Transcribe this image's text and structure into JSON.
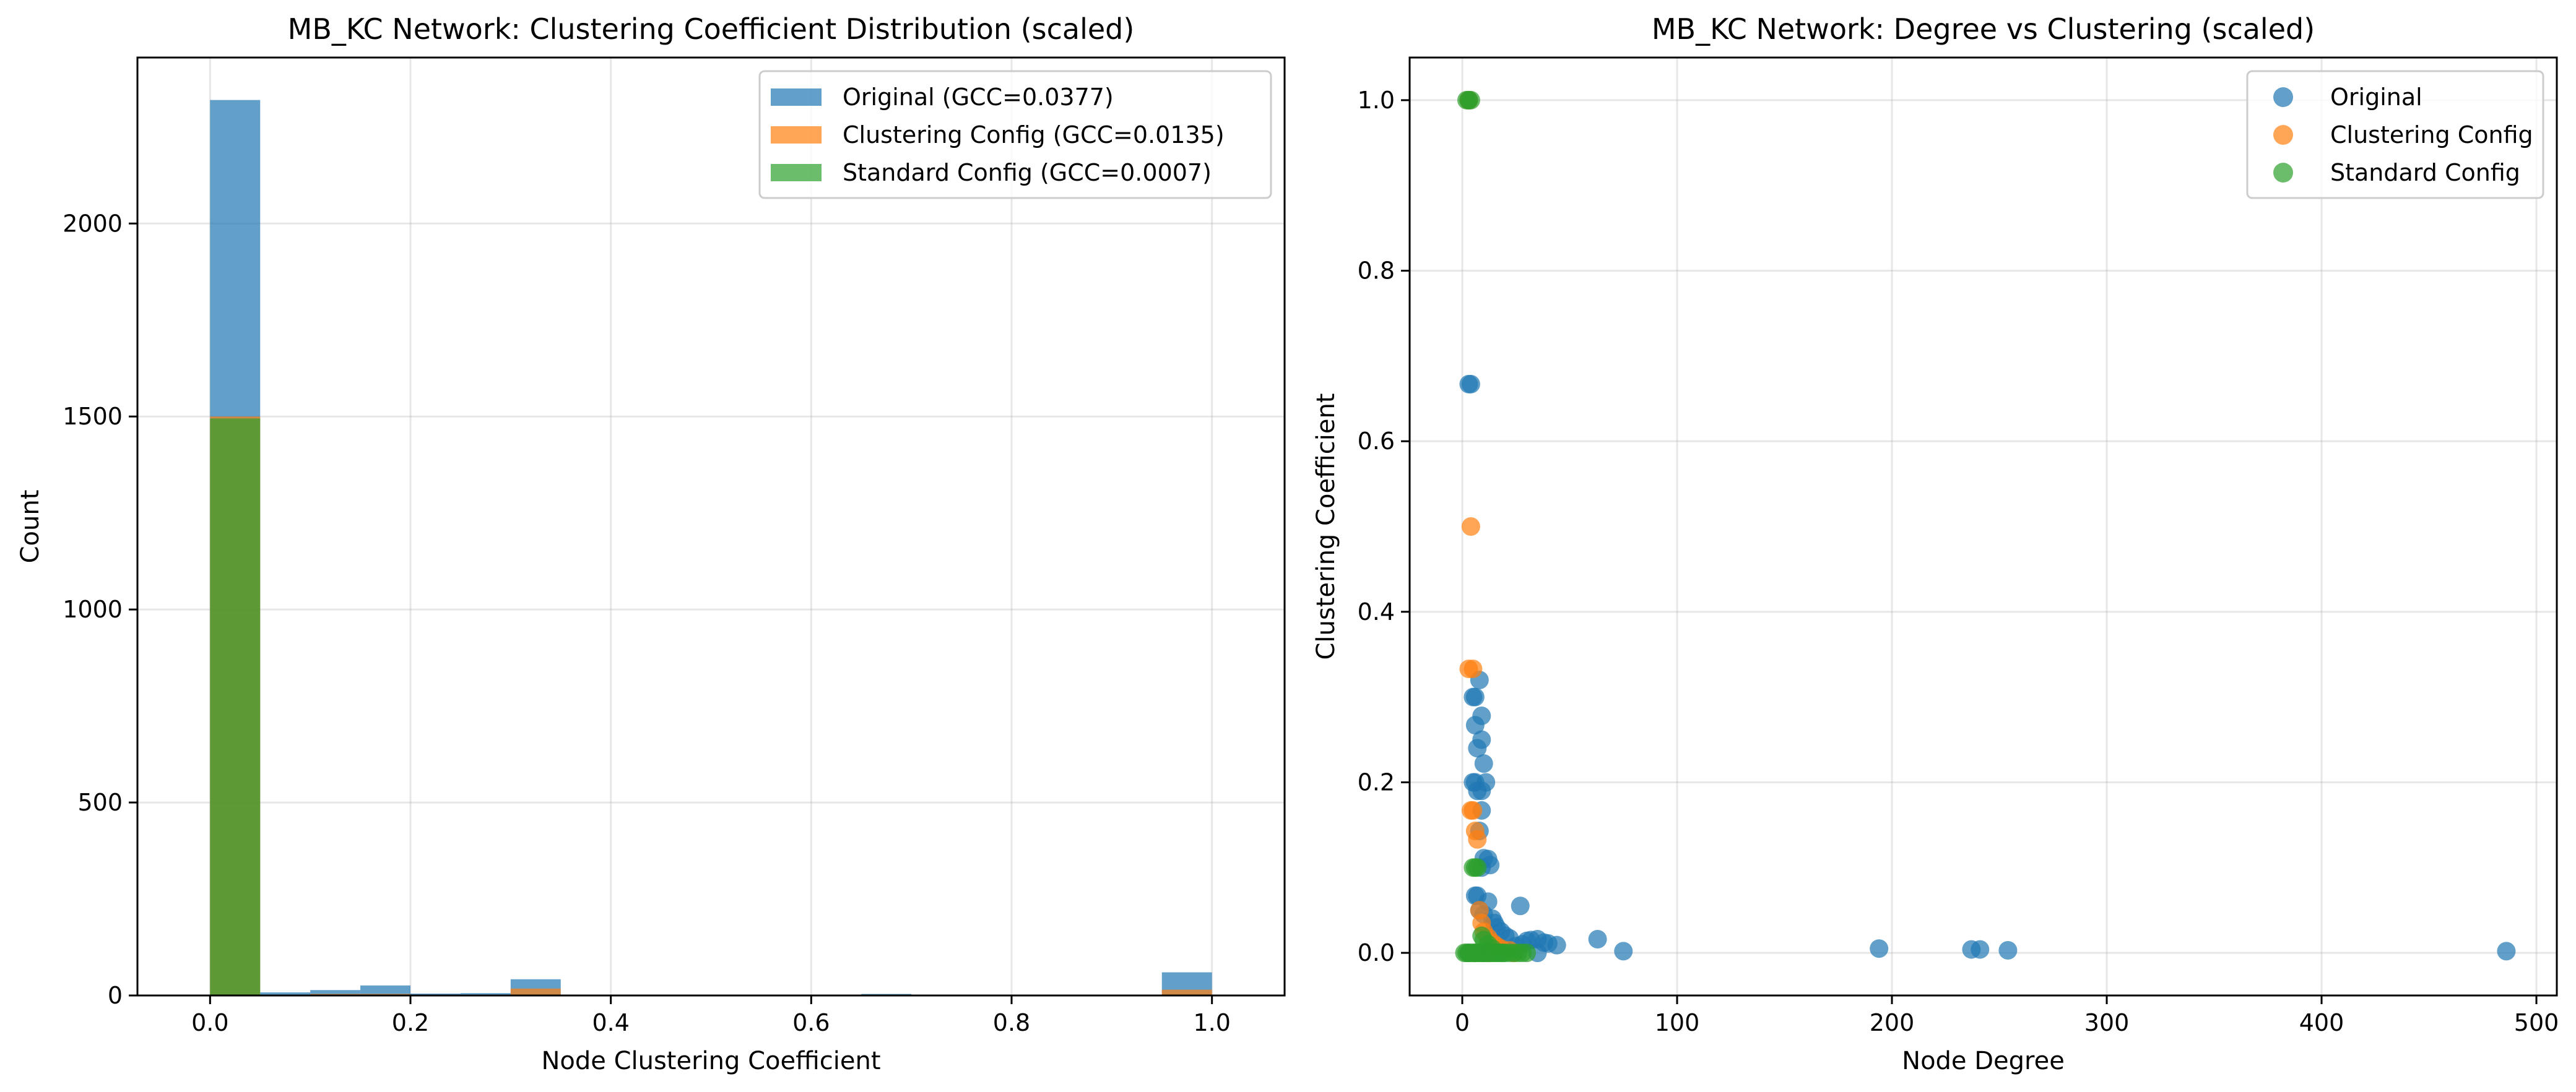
{
  "chart_data": [
    {
      "type": "bar",
      "title": "MB_KC Network: Clustering Coefficient Distribution (scaled)",
      "xlabel": "Node Clustering Coefficient",
      "ylabel": "Count",
      "xlim": [
        -0.0725,
        1.0725
      ],
      "ylim": [
        0,
        2430
      ],
      "xticks": [
        "0.0",
        "0.2",
        "0.4",
        "0.6",
        "0.8",
        "1.0"
      ],
      "yticks": [
        "0",
        "500",
        "1000",
        "1500",
        "2000"
      ],
      "grid": true,
      "legend_position": "upper right",
      "bin_width": 0.05,
      "bin_starts": [
        0.0,
        0.05,
        0.1,
        0.15,
        0.2,
        0.25,
        0.3,
        0.35,
        0.4,
        0.45,
        0.5,
        0.55,
        0.6,
        0.65,
        0.7,
        0.75,
        0.8,
        0.85,
        0.9,
        0.95
      ],
      "series": [
        {
          "name": "Original (GCC=0.0377)",
          "color": "#1f77b4",
          "values": [
            2320,
            8,
            14,
            26,
            5,
            6,
            42,
            0,
            0,
            0,
            2,
            0,
            0,
            4,
            0,
            0,
            0,
            0,
            0,
            60
          ]
        },
        {
          "name": "Clustering Config (GCC=0.0135)",
          "color": "#ff7f0e",
          "values": [
            1500,
            0,
            4,
            4,
            0,
            0,
            18,
            0,
            0,
            0,
            1,
            0,
            0,
            0,
            0,
            0,
            0,
            0,
            0,
            15
          ]
        },
        {
          "name": "Standard Config (GCC=0.0007)",
          "color": "#2ca02c",
          "values": [
            1495,
            0,
            0,
            0,
            0,
            0,
            0,
            0,
            0,
            0,
            0,
            0,
            0,
            0,
            0,
            0,
            0,
            0,
            0,
            2
          ]
        }
      ]
    },
    {
      "type": "scatter",
      "title": "MB_KC Network: Degree vs Clustering (scaled)",
      "xlabel": "Node Degree",
      "ylabel": "Clustering Coefficient",
      "xlim": [
        -24.5,
        509.5
      ],
      "ylim": [
        -0.05,
        1.05
      ],
      "xticks": [
        "0",
        "100",
        "200",
        "300",
        "400",
        "500"
      ],
      "yticks": [
        "0.0",
        "0.2",
        "0.4",
        "0.6",
        "0.8",
        "1.0"
      ],
      "grid": true,
      "legend_position": "upper right",
      "series": [
        {
          "name": "Original",
          "color": "#1f77b4",
          "points": [
            [
              3,
              1.0
            ],
            [
              3,
              0.667
            ],
            [
              4,
              0.667
            ],
            [
              5,
              0.3
            ],
            [
              6,
              0.3
            ],
            [
              8,
              0.32
            ],
            [
              6,
              0.267
            ],
            [
              9,
              0.278
            ],
            [
              7,
              0.24
            ],
            [
              9,
              0.25
            ],
            [
              10,
              0.222
            ],
            [
              5,
              0.2
            ],
            [
              6,
              0.2
            ],
            [
              11,
              0.2
            ],
            [
              7,
              0.19
            ],
            [
              9,
              0.19
            ],
            [
              9,
              0.167
            ],
            [
              8,
              0.143
            ],
            [
              10,
              0.111
            ],
            [
              12,
              0.11
            ],
            [
              13,
              0.103
            ],
            [
              9,
              0.1
            ],
            [
              6,
              0.067
            ],
            [
              7,
              0.067
            ],
            [
              12,
              0.06
            ],
            [
              27,
              0.055
            ],
            [
              8,
              0.05
            ],
            [
              10,
              0.045
            ],
            [
              14,
              0.04
            ],
            [
              15,
              0.035
            ],
            [
              16,
              0.03
            ],
            [
              18,
              0.025
            ],
            [
              20,
              0.02
            ],
            [
              22,
              0.017
            ],
            [
              30,
              0.014
            ],
            [
              32,
              0.015
            ],
            [
              35,
              0.016
            ],
            [
              38,
              0.012
            ],
            [
              40,
              0.011
            ],
            [
              44,
              0.009
            ],
            [
              28,
              0.01
            ],
            [
              25,
              0.008
            ],
            [
              63,
              0.016
            ],
            [
              75,
              0.002
            ],
            [
              194,
              0.005
            ],
            [
              237,
              0.004
            ],
            [
              241,
              0.004
            ],
            [
              254,
              0.003
            ],
            [
              486,
              0.002
            ],
            [
              35,
              0.0
            ],
            [
              3,
              0.0
            ],
            [
              6,
              0.0
            ],
            [
              10,
              0.0
            ]
          ]
        },
        {
          "name": "Clustering Config",
          "color": "#ff7f0e",
          "points": [
            [
              3,
              1.0
            ],
            [
              4,
              0.5
            ],
            [
              3,
              0.333
            ],
            [
              5,
              0.333
            ],
            [
              4,
              0.167
            ],
            [
              5,
              0.167
            ],
            [
              6,
              0.143
            ],
            [
              7,
              0.133
            ],
            [
              8,
              0.05
            ],
            [
              9,
              0.035
            ],
            [
              10,
              0.025
            ],
            [
              12,
              0.018
            ],
            [
              14,
              0.012
            ],
            [
              16,
              0.008
            ],
            [
              18,
              0.005
            ],
            [
              22,
              0.003
            ],
            [
              6,
              0.0
            ],
            [
              12,
              0.0
            ],
            [
              24,
              0.0
            ]
          ]
        },
        {
          "name": "Standard Config",
          "color": "#2ca02c",
          "points": [
            [
              2,
              1.0
            ],
            [
              3,
              1.0
            ],
            [
              4,
              1.0
            ],
            [
              5,
              0.1
            ],
            [
              6,
              0.1
            ],
            [
              7,
              0.1
            ],
            [
              9,
              0.02
            ],
            [
              10,
              0.015
            ],
            [
              12,
              0.01
            ],
            [
              14,
              0.005
            ],
            [
              1,
              0.0
            ],
            [
              2,
              0.0
            ],
            [
              3,
              0.0
            ],
            [
              4,
              0.0
            ],
            [
              5,
              0.0
            ],
            [
              6,
              0.0
            ],
            [
              7,
              0.0
            ],
            [
              8,
              0.0
            ],
            [
              9,
              0.0
            ],
            [
              10,
              0.0
            ],
            [
              11,
              0.0
            ],
            [
              12,
              0.0
            ],
            [
              13,
              0.0
            ],
            [
              14,
              0.0
            ],
            [
              15,
              0.0
            ],
            [
              16,
              0.0
            ],
            [
              17,
              0.0
            ],
            [
              18,
              0.0
            ],
            [
              19,
              0.0
            ],
            [
              20,
              0.0
            ],
            [
              22,
              0.0
            ],
            [
              24,
              0.0
            ],
            [
              26,
              0.0
            ],
            [
              28,
              0.0
            ],
            [
              30,
              0.0
            ]
          ]
        }
      ]
    }
  ]
}
